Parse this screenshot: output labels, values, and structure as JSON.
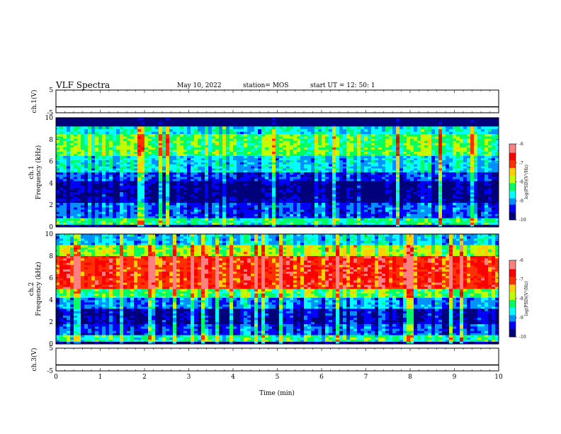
{
  "header": {
    "title": "VLF Spectra",
    "date": "May 10, 2022",
    "station": "station= MOS",
    "start": "start  UT =   12: 50: 1"
  },
  "colors": {
    "colormap": [
      "#00007a",
      "#0000ff",
      "#0090ff",
      "#00ffff",
      "#00ff60",
      "#c0ff00",
      "#ffd000",
      "#ff3000",
      "#ff0000",
      "#ff8080",
      "#ffffff"
    ],
    "trace": "#000000",
    "background": "#ffffff"
  },
  "chart_data": [
    {
      "type": "line",
      "ylabel": "ch.1(V)",
      "ylim": [
        -5,
        5
      ],
      "y_ticks": [
        "5",
        "-5"
      ],
      "xlim": [
        0,
        10
      ],
      "series": [
        {
          "x": [
            0,
            10
          ],
          "values": [
            -2.4,
            -2.4
          ]
        }
      ]
    },
    {
      "type": "heatmap",
      "ylabel": "ch.1\nFrequency (kHz)",
      "ylim": [
        0,
        10
      ],
      "y_ticks": [
        "0",
        "2",
        "4",
        "6",
        "8",
        "10"
      ],
      "xlim": [
        0,
        10
      ],
      "colorbar": {
        "label": "log(PSD)(V²/Hz)",
        "range": [
          -10,
          -6
        ],
        "ticks": [
          "-6",
          "-7",
          "-8",
          "-9",
          "-10"
        ]
      },
      "bands": [
        {
          "y0": 9.2,
          "y1": 10,
          "level": 0.0
        },
        {
          "y0": 8.5,
          "y1": 9.2,
          "level": 0.35
        },
        {
          "y0": 6.5,
          "y1": 8.5,
          "level": 0.48
        },
        {
          "y0": 5.0,
          "y1": 6.5,
          "level": 0.32
        },
        {
          "y0": 4.2,
          "y1": 5.0,
          "level": 0.18
        },
        {
          "y0": 2.2,
          "y1": 4.2,
          "level": 0.06
        },
        {
          "y0": 0.8,
          "y1": 2.2,
          "level": 0.2
        },
        {
          "y0": 0.2,
          "y1": 0.8,
          "level": 0.42
        },
        {
          "y0": 0.0,
          "y1": 0.2,
          "level": 0.05
        }
      ]
    },
    {
      "type": "heatmap",
      "ylabel": "ch.2\nFrequency (kHz)",
      "ylim": [
        0,
        10
      ],
      "y_ticks": [
        "0",
        "2",
        "4",
        "6",
        "8",
        "10"
      ],
      "xlim": [
        0,
        10
      ],
      "colorbar": {
        "label": "log(PSD)(V²/Hz)",
        "range": [
          -10,
          -6
        ],
        "ticks": [
          "-6",
          "-7",
          "-8",
          "-9",
          "-10"
        ]
      },
      "bands": [
        {
          "y0": 9.0,
          "y1": 10,
          "level": 0.32
        },
        {
          "y0": 8.0,
          "y1": 9.0,
          "level": 0.55
        },
        {
          "y0": 5.0,
          "y1": 8.0,
          "level": 0.8
        },
        {
          "y0": 4.2,
          "y1": 5.0,
          "level": 0.48
        },
        {
          "y0": 3.2,
          "y1": 4.2,
          "level": 0.26
        },
        {
          "y0": 1.8,
          "y1": 3.2,
          "level": 0.1
        },
        {
          "y0": 0.8,
          "y1": 1.8,
          "level": 0.2
        },
        {
          "y0": 0.2,
          "y1": 0.8,
          "level": 0.42
        },
        {
          "y0": 0.0,
          "y1": 0.2,
          "level": 0.05
        }
      ]
    },
    {
      "type": "line",
      "ylabel": "ch.3(V)",
      "xlabel": "Time  (min)",
      "ylim": [
        -5,
        5
      ],
      "y_ticks": [
        "5",
        "-5"
      ],
      "xlim": [
        0,
        10
      ],
      "x_ticks": [
        "0",
        "1",
        "2",
        "3",
        "4",
        "5",
        "6",
        "7",
        "8",
        "9",
        "10"
      ],
      "series": [
        {
          "x": [
            0,
            10
          ],
          "values": [
            -2.4,
            -2.4
          ]
        }
      ]
    }
  ]
}
